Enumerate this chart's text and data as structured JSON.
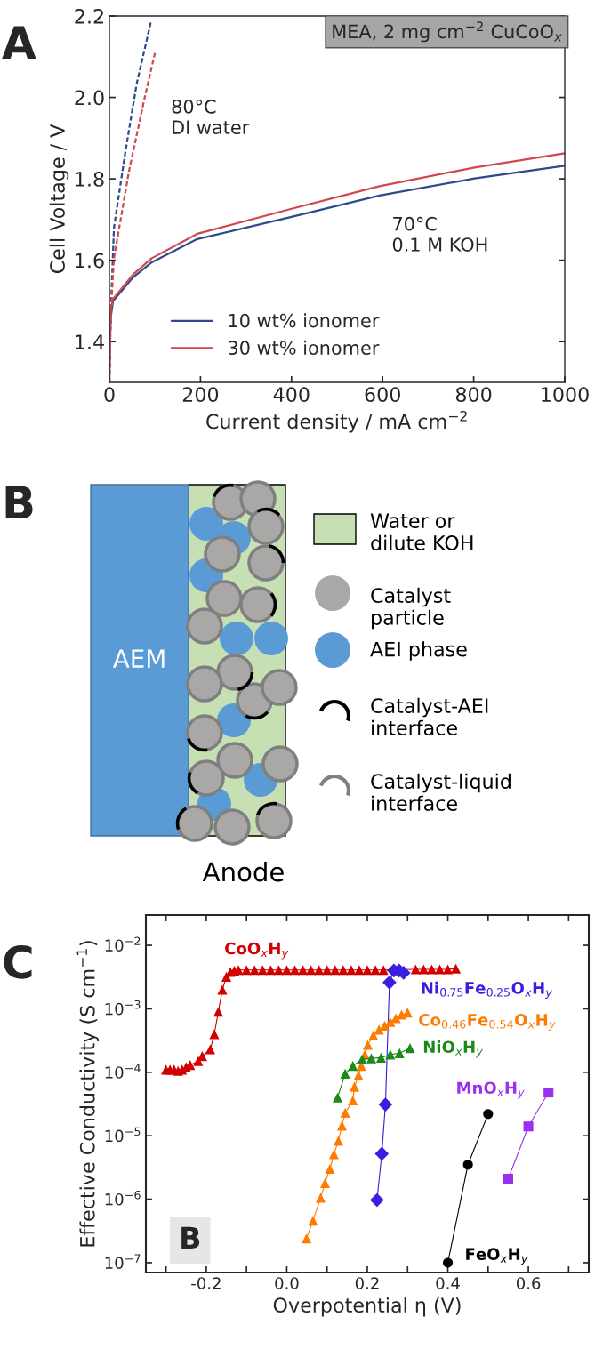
{
  "chart_data": [
    {
      "type": "line",
      "title": "A",
      "xlabel": "Current density / mA cm$^{−2}$",
      "ylabel": "Cell Voltage / V",
      "xlim": [
        0,
        1000
      ],
      "xticks": [
        0,
        200,
        400,
        600,
        800,
        1000
      ],
      "ylim": [
        1.3,
        2.2
      ],
      "yticks": [
        {
          "value": 1.4,
          "label": "1.4"
        },
        {
          "value": 1.6,
          "label": "1.6"
        },
        {
          "value": 1.8,
          "label": "1.8"
        },
        {
          "value": 2.0,
          "label": "2.0"
        },
        {
          "value": 2.2,
          "label": "2.2"
        }
      ],
      "legend": "bottom left",
      "grid": false,
      "annotations": [
        "MEA, 2 mg cm$^{−2}$ CuCoO$_{x}$",
        "80°C\nDI water",
        "70°C\n0.1 M KOH"
      ],
      "series": [
        {
          "name": "10 wt% ionomer",
          "color": "#2d4a8a",
          "line_style": "solid",
          "x": [
            0,
            1,
            3,
            8,
            52,
            93,
            193,
            402,
            593,
            802,
            1000
          ],
          "values": [
            1.3,
            1.4,
            1.46,
            1.5,
            1.558,
            1.595,
            1.652,
            1.707,
            1.759,
            1.801,
            1.832
          ]
        },
        {
          "name": "30 wt% ionomer",
          "color": "#d0474f",
          "line_style": "solid",
          "x": [
            0,
            1,
            3,
            8,
            52,
            93,
            193,
            402,
            593,
            802,
            1000
          ],
          "values": [
            1.33,
            1.42,
            1.48,
            1.505,
            1.565,
            1.605,
            1.665,
            1.727,
            1.782,
            1.828,
            1.863
          ]
        },
        {
          "color": "#2d4a8a",
          "line_style": "dashed",
          "x": [
            0,
            3,
            10,
            35,
            60,
            92
          ],
          "values": [
            1.3,
            1.47,
            1.68,
            1.866,
            2.034,
            2.19
          ]
        },
        {
          "color": "#d0474f",
          "line_style": "dashed",
          "x": [
            0,
            3,
            10,
            43,
            77,
            100
          ],
          "values": [
            1.3,
            1.47,
            1.605,
            1.819,
            1.997,
            2.109
          ]
        }
      ]
    },
    {
      "type": "other",
      "title": "B",
      "annotations": [
        "AEM",
        "Anode",
        "Water or\ndilute KOH",
        "Catalyst\nparticle",
        "AEI phase",
        "Catalyst-AEI\ninterface",
        "Catalyst-liquid\ninterface"
      ]
    },
    {
      "type": "line",
      "title": "C",
      "xlabel": "Overpotential η (V)",
      "ylabel": "Effective Conductivity (S cm$^{−1}$)",
      "log": "y",
      "legend": false,
      "grid": false,
      "xlim": [
        -0.35,
        0.75
      ],
      "xticks": [
        {
          "value": -0.3,
          "label": null
        },
        {
          "value": -0.2,
          "label": "-0.2"
        },
        {
          "value": -0.1,
          "label": null
        },
        {
          "value": 0.0,
          "label": "0.0"
        },
        {
          "value": 0.1,
          "label": null
        },
        {
          "value": 0.2,
          "label": "0.2"
        },
        {
          "value": 0.3,
          "label": null
        },
        {
          "value": 0.4,
          "label": "0.4"
        },
        {
          "value": 0.5,
          "label": null
        },
        {
          "value": 0.6,
          "label": "0.6"
        },
        {
          "value": 0.7,
          "label": null
        }
      ],
      "ylim": [
        7e-08,
        0.03
      ],
      "yticks": [
        {
          "value": 1e-07,
          "label": "10$^{−7}$"
        },
        {
          "value": 1e-06,
          "label": "10$^{−6}$"
        },
        {
          "value": 1e-05,
          "label": "10$^{−5}$"
        },
        {
          "value": 0.0001,
          "label": "10$^{−4}$"
        },
        {
          "value": 0.001,
          "label": "10$^{−3}$"
        },
        {
          "value": 0.01,
          "label": "10$^{−2}$"
        }
      ],
      "annotations": [
        "B"
      ],
      "series": [
        {
          "name": "CoO$_{x}$H$_{y}$",
          "color": "#d40000",
          "marker": "triangle",
          "x": [
            -0.3,
            -0.29,
            -0.28,
            -0.27,
            -0.26,
            -0.25,
            -0.24,
            -0.22,
            -0.21,
            -0.19,
            -0.18,
            -0.17,
            -0.16,
            -0.15,
            -0.14,
            -0.13,
            -0.12,
            -0.1,
            -0.08,
            -0.06,
            -0.04,
            -0.02,
            0.0,
            0.02,
            0.04,
            0.06,
            0.08,
            0.1,
            0.12,
            0.14,
            0.16,
            0.18,
            0.2,
            0.22,
            0.24,
            0.26,
            0.28,
            0.3,
            0.32,
            0.34,
            0.36,
            0.38,
            0.4,
            0.42
          ],
          "values": [
            0.00011,
            0.00011,
            0.00011,
            0.000105,
            0.00011,
            0.00012,
            0.00013,
            0.00015,
            0.00018,
            0.00023,
            0.0004,
            0.0009,
            0.002,
            0.0032,
            0.0038,
            0.004,
            0.0041,
            0.0041,
            0.0041,
            0.0041,
            0.0041,
            0.0041,
            0.0041,
            0.0041,
            0.0041,
            0.0041,
            0.0041,
            0.0041,
            0.0041,
            0.0041,
            0.0041,
            0.0041,
            0.0041,
            0.0041,
            0.0041,
            null,
            null,
            null,
            0.0042,
            0.0042,
            0.0042,
            0.0042,
            0.0042,
            0.0043
          ]
        },
        {
          "name": "Ni$_{0.75}$Fe$_{0.25}$O$_{x}$H$_{y}$",
          "color": "#3b1de0",
          "marker": "diamond",
          "x": [
            0.224,
            0.236,
            0.245,
            0.255,
            0.266,
            0.279,
            0.29
          ],
          "values": [
            9.7e-07,
            5.2e-06,
            3.1e-05,
            0.0026,
            0.004,
            0.004,
            0.0037
          ]
        },
        {
          "name": "Co$_{0.46}$Fe$_{0.54}$O$_{x}$H$_{y}$",
          "color": "#ff7b00",
          "marker": "triangle",
          "x": [
            0.049,
            0.065,
            0.084,
            0.095,
            0.107,
            0.117,
            0.128,
            0.137,
            0.145,
            0.164,
            0.168,
            0.178,
            0.185,
            0.194,
            0.201,
            0.215,
            0.229,
            0.243,
            0.257,
            0.271,
            0.285,
            0.3
          ],
          "values": [
            2.4e-07,
            4.6e-07,
            1.05e-06,
            1.8e-06,
            3e-06,
            5.1e-06,
            8.3e-06,
            1.44e-05,
            2.3e-05,
            3.6e-05,
            5.9e-05,
            8.9e-05,
            0.000126,
            0.00019,
            0.00027,
            0.00038,
            0.00047,
            0.00054,
            0.00062,
            0.00071,
            0.00081,
            0.00087
          ]
        },
        {
          "name": "NiO$_{x}$H$_{y}$",
          "color": "#1a8a1a",
          "marker": "triangle",
          "x": [
            0.126,
            0.145,
            0.164,
            0.187,
            0.21,
            0.234,
            0.257,
            0.28,
            0.306
          ],
          "values": [
            4e-05,
            9.5e-05,
            0.000126,
            0.00016,
            0.000166,
            0.00017,
            0.00019,
            0.0002,
            0.00024
          ]
        },
        {
          "name": "MnO$_{x}$H$_{y}$",
          "color": "#9b30f0",
          "marker": "square",
          "x": [
            0.55,
            0.6,
            0.65
          ],
          "values": [
            2.1e-06,
            1.4e-05,
            4.8e-05
          ]
        },
        {
          "name": "FeO$_{x}$H$_{y}$",
          "color": "#000000",
          "marker": "circle",
          "x": [
            0.4,
            0.45,
            0.5
          ],
          "values": [
            1e-07,
            3.5e-06,
            2.2e-05
          ]
        }
      ]
    }
  ]
}
